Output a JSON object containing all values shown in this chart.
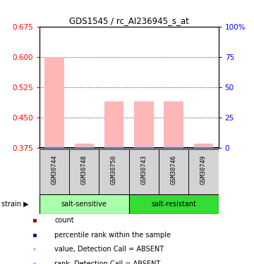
{
  "title": "GDS1545 / rc_AI236945_s_at",
  "samples": [
    "GSM30744",
    "GSM30748",
    "GSM30750",
    "GSM30743",
    "GSM30746",
    "GSM30749"
  ],
  "value_bars": [
    0.6,
    0.385,
    0.49,
    0.49,
    0.49,
    0.385
  ],
  "bar_color_value": "#ffb6b6",
  "bar_color_rank": "#b8b8ff",
  "rank_bar_height": 0.004,
  "ylim_left": [
    0.375,
    0.675
  ],
  "ylim_right": [
    0,
    100
  ],
  "yticks_left": [
    0.375,
    0.45,
    0.525,
    0.6,
    0.675
  ],
  "yticks_right": [
    0,
    25,
    50,
    75,
    100
  ],
  "ytick_labels_right": [
    "0",
    "25",
    "50",
    "75",
    "100%"
  ],
  "grid_lines": [
    0.45,
    0.525,
    0.6
  ],
  "bar_width": 0.65,
  "legend_items": [
    {
      "label": "count",
      "color": "#cc0000"
    },
    {
      "label": "percentile rank within the sample",
      "color": "#0000cc"
    },
    {
      "label": "value, Detection Call = ABSENT",
      "color": "#ffb6b6"
    },
    {
      "label": "rank, Detection Call = ABSENT",
      "color": "#b8b8ff"
    }
  ],
  "group_defs": [
    {
      "start": 0,
      "end": 3,
      "label": "salt-sensitive",
      "color": "#aaffaa"
    },
    {
      "start": 3,
      "end": 6,
      "label": "salt-resistant",
      "color": "#33dd33"
    }
  ],
  "header_bg": "#d3d3d3",
  "strain_label": "strain"
}
